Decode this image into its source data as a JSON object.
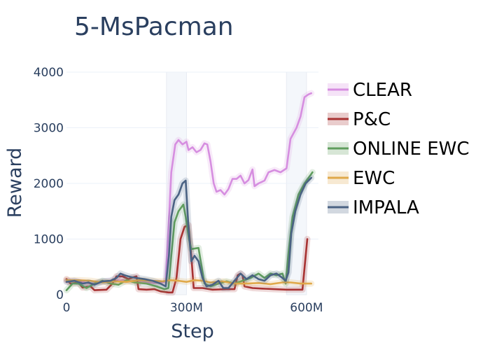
{
  "chart_data": {
    "type": "line",
    "title": "5-MsPacman",
    "xlabel": "Step",
    "ylabel": "Reward",
    "xlim": [
      0,
      630
    ],
    "ylim": [
      0,
      4000
    ],
    "x_unit": "M steps",
    "xticks": [
      {
        "value": 0,
        "label": "0"
      },
      {
        "value": 300,
        "label": "300M"
      },
      {
        "value": 600,
        "label": "600M"
      }
    ],
    "yticks": [
      {
        "value": 0,
        "label": "0"
      },
      {
        "value": 1000,
        "label": "1000"
      },
      {
        "value": 2000,
        "label": "2000"
      },
      {
        "value": 3000,
        "label": "3000"
      },
      {
        "value": 4000,
        "label": "4000"
      }
    ],
    "grid": true,
    "legend_position": "right",
    "shaded_regions": [
      [
        250,
        300
      ],
      [
        550,
        600
      ]
    ],
    "series": [
      {
        "name": "CLEAR",
        "color": "#d68ee0",
        "points": [
          [
            0,
            250
          ],
          [
            30,
            240
          ],
          [
            60,
            200
          ],
          [
            100,
            240
          ],
          [
            140,
            260
          ],
          [
            180,
            230
          ],
          [
            220,
            210
          ],
          [
            248,
            230
          ],
          [
            255,
            1200
          ],
          [
            262,
            2200
          ],
          [
            272,
            2700
          ],
          [
            280,
            2780
          ],
          [
            290,
            2700
          ],
          [
            300,
            2750
          ],
          [
            305,
            2600
          ],
          [
            315,
            2650
          ],
          [
            325,
            2560
          ],
          [
            335,
            2600
          ],
          [
            345,
            2720
          ],
          [
            352,
            2700
          ],
          [
            360,
            2400
          ],
          [
            368,
            2000
          ],
          [
            375,
            1850
          ],
          [
            385,
            1880
          ],
          [
            395,
            1800
          ],
          [
            405,
            1900
          ],
          [
            415,
            2080
          ],
          [
            425,
            2080
          ],
          [
            435,
            2140
          ],
          [
            445,
            2000
          ],
          [
            455,
            2060
          ],
          [
            465,
            2250
          ],
          [
            470,
            1950
          ],
          [
            480,
            2000
          ],
          [
            495,
            2050
          ],
          [
            505,
            2200
          ],
          [
            520,
            2240
          ],
          [
            535,
            2200
          ],
          [
            550,
            2270
          ],
          [
            560,
            2800
          ],
          [
            575,
            3000
          ],
          [
            585,
            3200
          ],
          [
            595,
            3550
          ],
          [
            605,
            3600
          ],
          [
            612,
            3620
          ]
        ]
      },
      {
        "name": "P&C",
        "color": "#a83232",
        "points": [
          [
            0,
            280
          ],
          [
            10,
            200
          ],
          [
            30,
            220
          ],
          [
            40,
            130
          ],
          [
            60,
            150
          ],
          [
            70,
            80
          ],
          [
            100,
            90
          ],
          [
            115,
            200
          ],
          [
            125,
            330
          ],
          [
            140,
            330
          ],
          [
            155,
            280
          ],
          [
            165,
            310
          ],
          [
            175,
            330
          ],
          [
            180,
            100
          ],
          [
            200,
            90
          ],
          [
            220,
            100
          ],
          [
            235,
            60
          ],
          [
            255,
            40
          ],
          [
            265,
            40
          ],
          [
            275,
            300
          ],
          [
            285,
            1000
          ],
          [
            295,
            1220
          ],
          [
            305,
            1250
          ],
          [
            312,
            700
          ],
          [
            318,
            120
          ],
          [
            340,
            120
          ],
          [
            365,
            90
          ],
          [
            400,
            100
          ],
          [
            420,
            100
          ],
          [
            428,
            350
          ],
          [
            435,
            380
          ],
          [
            440,
            350
          ],
          [
            445,
            150
          ],
          [
            465,
            120
          ],
          [
            490,
            110
          ],
          [
            520,
            100
          ],
          [
            550,
            90
          ],
          [
            575,
            90
          ],
          [
            590,
            90
          ],
          [
            598,
            700
          ],
          [
            602,
            1000
          ]
        ]
      },
      {
        "name": "ONLINE EWC",
        "color": "#5f9d5d",
        "points": [
          [
            0,
            80
          ],
          [
            15,
            200
          ],
          [
            30,
            200
          ],
          [
            50,
            120
          ],
          [
            70,
            200
          ],
          [
            90,
            250
          ],
          [
            110,
            200
          ],
          [
            130,
            180
          ],
          [
            150,
            260
          ],
          [
            170,
            220
          ],
          [
            200,
            200
          ],
          [
            225,
            150
          ],
          [
            245,
            100
          ],
          [
            255,
            120
          ],
          [
            262,
            700
          ],
          [
            270,
            1300
          ],
          [
            280,
            1500
          ],
          [
            292,
            1620
          ],
          [
            298,
            1400
          ],
          [
            306,
            1000
          ],
          [
            312,
            820
          ],
          [
            330,
            840
          ],
          [
            338,
            500
          ],
          [
            345,
            200
          ],
          [
            360,
            150
          ],
          [
            380,
            200
          ],
          [
            400,
            240
          ],
          [
            420,
            200
          ],
          [
            440,
            250
          ],
          [
            460,
            300
          ],
          [
            480,
            380
          ],
          [
            495,
            300
          ],
          [
            510,
            380
          ],
          [
            525,
            350
          ],
          [
            540,
            380
          ],
          [
            548,
            200
          ],
          [
            555,
            750
          ],
          [
            565,
            1400
          ],
          [
            580,
            1800
          ],
          [
            595,
            2000
          ],
          [
            610,
            2150
          ],
          [
            615,
            2200
          ]
        ]
      },
      {
        "name": "EWC",
        "color": "#e0a94a",
        "points": [
          [
            0,
            260
          ],
          [
            30,
            260
          ],
          [
            60,
            250
          ],
          [
            90,
            220
          ],
          [
            120,
            240
          ],
          [
            150,
            230
          ],
          [
            180,
            260
          ],
          [
            210,
            250
          ],
          [
            240,
            240
          ],
          [
            260,
            260
          ],
          [
            280,
            250
          ],
          [
            300,
            230
          ],
          [
            320,
            260
          ],
          [
            340,
            250
          ],
          [
            360,
            220
          ],
          [
            390,
            240
          ],
          [
            420,
            200
          ],
          [
            450,
            200
          ],
          [
            480,
            210
          ],
          [
            510,
            190
          ],
          [
            540,
            220
          ],
          [
            560,
            220
          ],
          [
            585,
            200
          ],
          [
            612,
            200
          ]
        ]
      },
      {
        "name": "IMPALA",
        "color": "#4a6283",
        "points": [
          [
            0,
            230
          ],
          [
            20,
            250
          ],
          [
            40,
            200
          ],
          [
            55,
            220
          ],
          [
            70,
            180
          ],
          [
            90,
            240
          ],
          [
            110,
            250
          ],
          [
            125,
            300
          ],
          [
            135,
            380
          ],
          [
            145,
            350
          ],
          [
            160,
            320
          ],
          [
            175,
            300
          ],
          [
            195,
            280
          ],
          [
            215,
            250
          ],
          [
            235,
            200
          ],
          [
            248,
            150
          ],
          [
            256,
            700
          ],
          [
            262,
            1400
          ],
          [
            270,
            1700
          ],
          [
            280,
            1800
          ],
          [
            290,
            2000
          ],
          [
            298,
            2050
          ],
          [
            305,
            1200
          ],
          [
            312,
            600
          ],
          [
            320,
            700
          ],
          [
            330,
            600
          ],
          [
            340,
            300
          ],
          [
            350,
            150
          ],
          [
            365,
            180
          ],
          [
            380,
            250
          ],
          [
            392,
            120
          ],
          [
            405,
            120
          ],
          [
            420,
            250
          ],
          [
            435,
            380
          ],
          [
            450,
            280
          ],
          [
            465,
            350
          ],
          [
            480,
            280
          ],
          [
            495,
            250
          ],
          [
            510,
            350
          ],
          [
            525,
            380
          ],
          [
            540,
            300
          ],
          [
            548,
            250
          ],
          [
            555,
            400
          ],
          [
            562,
            1100
          ],
          [
            572,
            1500
          ],
          [
            585,
            1800
          ],
          [
            598,
            2000
          ],
          [
            612,
            2100
          ]
        ]
      }
    ]
  }
}
